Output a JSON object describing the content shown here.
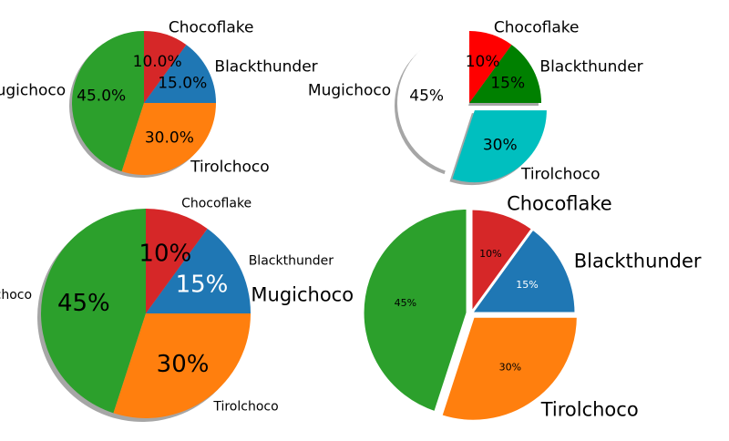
{
  "chart_data": [
    {
      "type": "pie",
      "categories": [
        "Blackthunder",
        "Chocoflake",
        "Mugichoco",
        "Tirolchoco"
      ],
      "values": [
        15,
        10,
        45,
        30
      ],
      "value_labels": [
        "15.0%",
        "10.0%",
        "45.0%",
        "30.0%"
      ],
      "colors": [
        "#1f77b4",
        "#d62728",
        "#2ca02c",
        "#ff7f0e"
      ],
      "shadow": true
    },
    {
      "type": "pie",
      "categories": [
        "Blackthunder",
        "Chocoflake",
        "Mugichoco",
        "Tirolchoco"
      ],
      "values": [
        15,
        10,
        45,
        30
      ],
      "value_labels": [
        "15%",
        "10%",
        "45%",
        "30%"
      ],
      "colors": [
        "#008000",
        "#ff0000",
        "#ffffff",
        "#00bfbf"
      ],
      "exploded": [
        "Tirolchoco"
      ],
      "shadow": true
    },
    {
      "type": "pie",
      "categories": [
        "Blackthunder",
        "Chocoflake",
        "Mugichoco",
        "Tirolchoco"
      ],
      "values": [
        15,
        10,
        45,
        30
      ],
      "value_labels": [
        "15%",
        "10%",
        "45%",
        "30%"
      ],
      "colors": [
        "#1f77b4",
        "#d62728",
        "#2ca02c",
        "#ff7f0e"
      ],
      "value_label_colors": [
        "#ffffff",
        "#000000",
        "#000000",
        "#000000"
      ],
      "shadow": true
    },
    {
      "type": "pie",
      "categories": [
        "Blackthunder",
        "Chocoflake",
        "Mugichoco",
        "Tirolchoco"
      ],
      "values": [
        15,
        10,
        45,
        30
      ],
      "value_labels": [
        "15%",
        "10%",
        "45%",
        "30%"
      ],
      "colors": [
        "#1f77b4",
        "#d62728",
        "#2ca02c",
        "#ff7f0e"
      ],
      "value_label_colors": [
        "#ffffff",
        "#000000",
        "#000000",
        "#000000"
      ],
      "exploded": [
        "Mugichoco",
        "Tirolchoco"
      ]
    }
  ]
}
